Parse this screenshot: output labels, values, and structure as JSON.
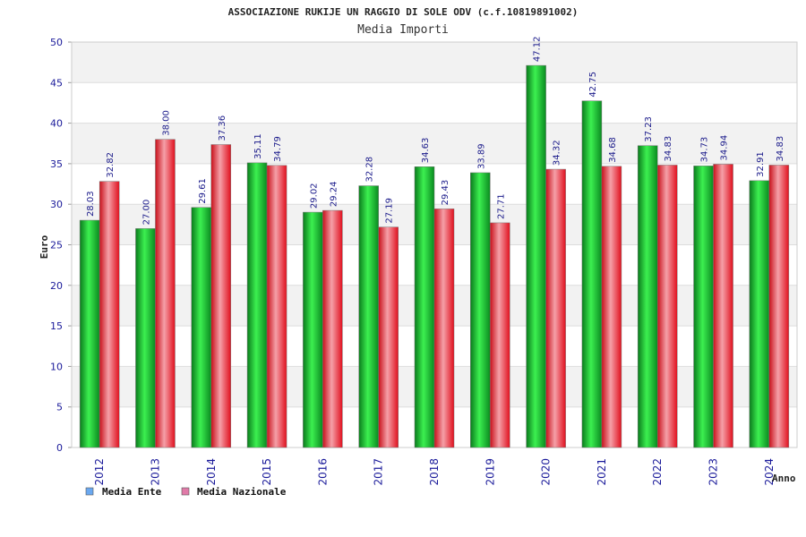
{
  "chart_data": {
    "type": "bar",
    "title": "ASSOCIAZIONE RUKIJE UN RAGGIO DI SOLE ODV (c.f.10819891002)",
    "subtitle": "Media Importi",
    "ylabel": "Euro",
    "xlabel": "Anno",
    "ylim": [
      0,
      50
    ],
    "yticks": [
      "0",
      "5",
      "10",
      "15",
      "20",
      "25",
      "30",
      "35",
      "40",
      "45",
      "50"
    ],
    "grid": true,
    "legend_position": "bottom-left",
    "categories": [
      "2012",
      "2013",
      "2014",
      "2015",
      "2016",
      "2017",
      "2018",
      "2019",
      "2020",
      "2021",
      "2022",
      "2023",
      "2024"
    ],
    "series": [
      {
        "name": "Media Ente",
        "color": "#0ea82a",
        "legend_color": "#6aa8f0",
        "values": [
          28.03,
          27.0,
          29.61,
          35.11,
          29.02,
          32.28,
          34.63,
          33.89,
          47.12,
          42.75,
          37.23,
          34.73,
          32.91
        ],
        "labels": [
          "28.03",
          "27.00",
          "29.61",
          "35.11",
          "29.02",
          "32.28",
          "34.63",
          "33.89",
          "47.12",
          "42.75",
          "37.23",
          "34.73",
          "32.91"
        ]
      },
      {
        "name": "Media Nazionale",
        "color": "#e8202a",
        "legend_color": "#e07aa8",
        "values": [
          32.82,
          38.0,
          37.36,
          34.79,
          29.24,
          27.19,
          29.43,
          27.71,
          34.32,
          34.68,
          34.83,
          34.94,
          34.83
        ],
        "labels": [
          "32.82",
          "38.00",
          "37.36",
          "34.79",
          "29.24",
          "27.19",
          "29.43",
          "27.71",
          "34.32",
          "34.68",
          "34.83",
          "34.94",
          "34.83"
        ]
      }
    ]
  }
}
